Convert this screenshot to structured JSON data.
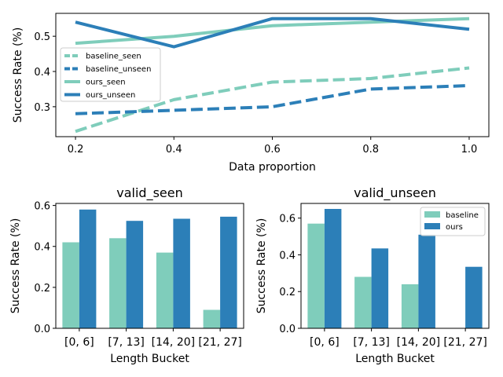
{
  "colors": {
    "seen": "#7fcdbb",
    "unseen": "#2c7fb8",
    "axis": "#000000"
  },
  "chart_data": [
    {
      "type": "line",
      "title": "",
      "xlabel": "Data proportion",
      "ylabel": "Success Rate (%)",
      "x": [
        0.2,
        0.4,
        0.6,
        0.8,
        1.0
      ],
      "xlim": [
        0.16,
        1.04
      ],
      "ylim": [
        0.215,
        0.565
      ],
      "xticks": [
        0.2,
        0.4,
        0.6,
        0.8,
        1.0
      ],
      "xtick_labels": [
        "0.2",
        "0.4",
        "0.6",
        "0.8",
        "1.0"
      ],
      "yticks": [
        0.3,
        0.4,
        0.5
      ],
      "ytick_labels": [
        "0.3",
        "0.4",
        "0.5"
      ],
      "legend_position": "center-left",
      "series": [
        {
          "name": "baseline_seen",
          "values": [
            0.23,
            0.32,
            0.37,
            0.38,
            0.41
          ],
          "style": "dashed",
          "color": "#7fcdbb"
        },
        {
          "name": "baseline_unseen",
          "values": [
            0.28,
            0.29,
            0.3,
            0.35,
            0.36
          ],
          "style": "dashed",
          "color": "#2c7fb8"
        },
        {
          "name": "ours_seen",
          "values": [
            0.48,
            0.5,
            0.53,
            0.54,
            0.55
          ],
          "style": "solid",
          "color": "#7fcdbb"
        },
        {
          "name": "ours_unseen",
          "values": [
            0.54,
            0.47,
            0.55,
            0.55,
            0.52
          ],
          "style": "solid",
          "color": "#2c7fb8"
        }
      ]
    },
    {
      "type": "bar",
      "title": "valid_seen",
      "xlabel": "Length Bucket",
      "ylabel": "Success Rate (%)",
      "categories": [
        "[0, 6]",
        "[7, 13]",
        "[14, 20]",
        "[21, 27]"
      ],
      "ylim": [
        0,
        0.61
      ],
      "yticks": [
        0.0,
        0.2,
        0.4,
        0.6
      ],
      "ytick_labels": [
        "0.0",
        "0.2",
        "0.4",
        "0.6"
      ],
      "legend": false,
      "series": [
        {
          "name": "baseline",
          "values": [
            0.42,
            0.44,
            0.37,
            0.09
          ],
          "color": "#7fcdbb"
        },
        {
          "name": "ours",
          "values": [
            0.58,
            0.525,
            0.535,
            0.545
          ],
          "color": "#2c7fb8"
        }
      ]
    },
    {
      "type": "bar",
      "title": "valid_unseen",
      "xlabel": "Length Bucket",
      "ylabel": "Success Rate (%)",
      "categories": [
        "[0, 6]",
        "[7, 13]",
        "[14, 20]",
        "[21, 27]"
      ],
      "ylim": [
        0,
        0.68
      ],
      "yticks": [
        0.0,
        0.2,
        0.4,
        0.6
      ],
      "ytick_labels": [
        "0.0",
        "0.2",
        "0.4",
        "0.6"
      ],
      "legend": true,
      "legend_position": "top-right",
      "series": [
        {
          "name": "baseline",
          "values": [
            0.57,
            0.28,
            0.24,
            0
          ],
          "color": "#7fcdbb"
        },
        {
          "name": "ours",
          "values": [
            0.65,
            0.435,
            0.51,
            0.335
          ],
          "color": "#2c7fb8"
        }
      ]
    }
  ]
}
